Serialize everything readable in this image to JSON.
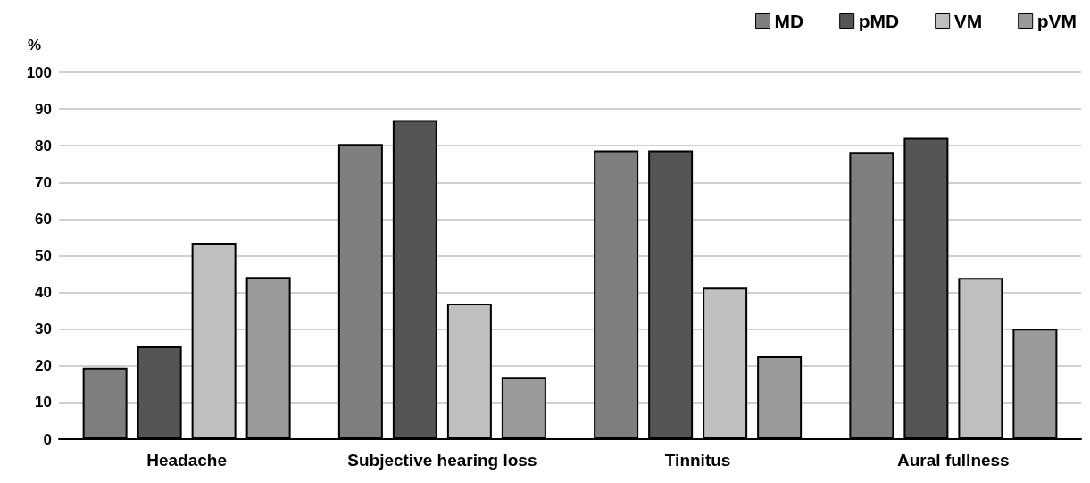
{
  "chart_data": {
    "type": "bar",
    "ylabel": "%",
    "categories": [
      "Headache",
      "Subjective hearing loss",
      "Tinnitus",
      "Aural fullness"
    ],
    "series": [
      {
        "name": "MD",
        "color": "#7f7f7f",
        "values": [
          19.5,
          80.5,
          78.7,
          78.3
        ]
      },
      {
        "name": "pMD",
        "color": "#555555",
        "values": [
          25.3,
          87,
          78.7,
          82.1
        ]
      },
      {
        "name": "VM",
        "color": "#bfbfbf",
        "values": [
          53.5,
          37,
          41.3,
          44
        ]
      },
      {
        "name": "pVM",
        "color": "#9a9a9a",
        "values": [
          44.2,
          17,
          22.6,
          30.1
        ]
      }
    ],
    "ylim": [
      0,
      100
    ],
    "yticks": [
      0,
      10,
      20,
      30,
      40,
      50,
      60,
      70,
      80,
      90,
      100
    ],
    "grid": "y",
    "legend": "top right"
  }
}
